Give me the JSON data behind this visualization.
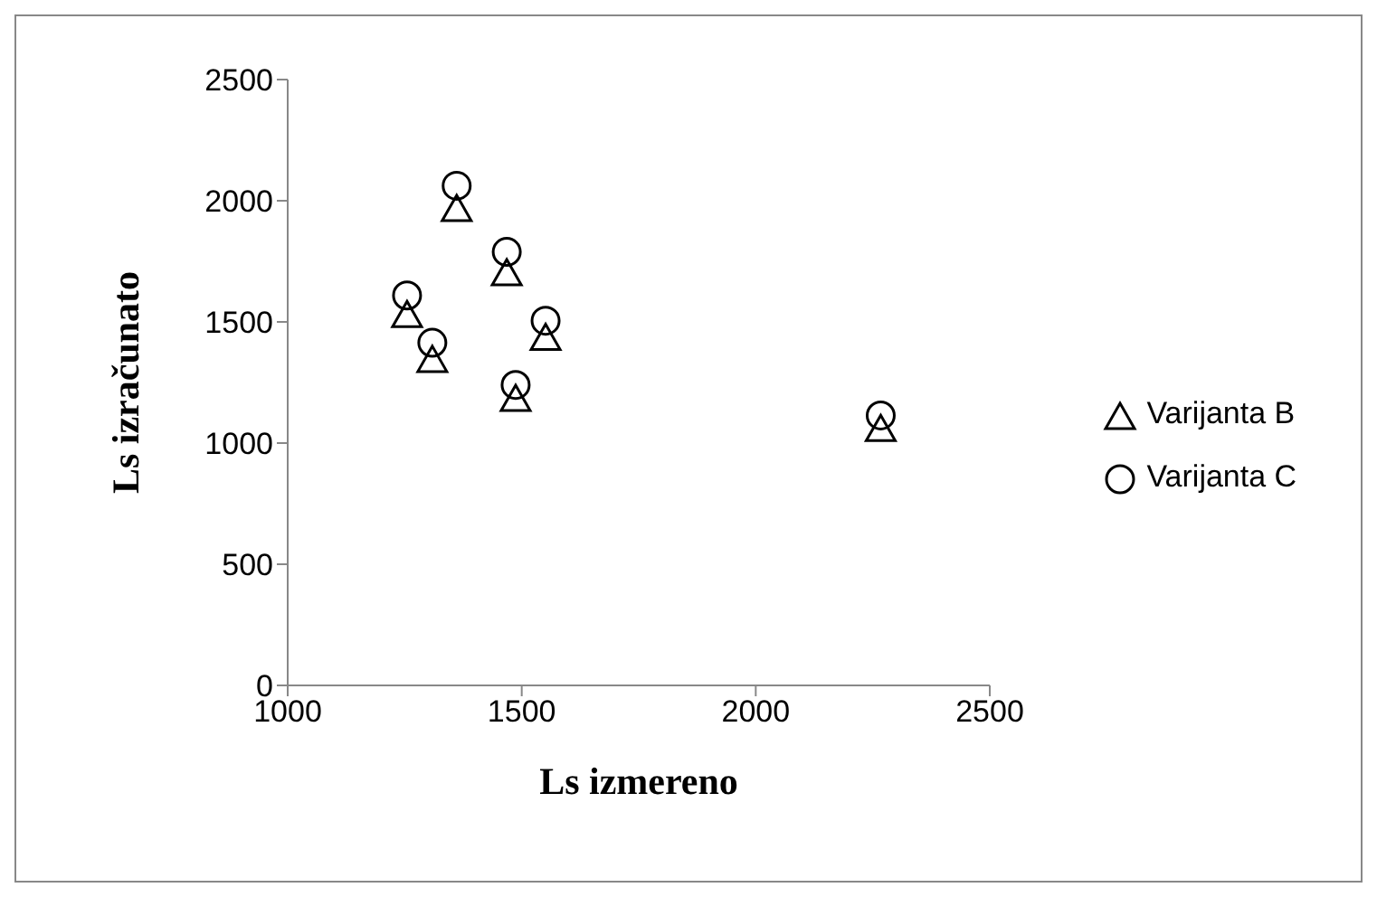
{
  "chart_data": {
    "type": "scatter",
    "xlabel": "Ls izmereno",
    "ylabel": "Ls izračunato",
    "xlim": [
      1000,
      2500
    ],
    "xticks": [
      1000,
      1500,
      2000,
      2500
    ],
    "ylim": [
      0,
      2500
    ],
    "yticks": [
      0,
      500,
      1000,
      1500,
      2000,
      2500
    ],
    "grid": false,
    "legend": "right",
    "series": [
      {
        "name": "Varijanta B",
        "color": "#000000",
        "marker": "triangle",
        "x": [
          1255,
          1309,
          1361,
          1468,
          1487,
          1551,
          2267
        ],
        "values": [
          1525,
          1340,
          1963,
          1698,
          1179,
          1431,
          1055
        ]
      },
      {
        "name": "Varijanta C",
        "color": "#000000",
        "marker": "circle",
        "x": [
          1255,
          1309,
          1361,
          1468,
          1487,
          1551,
          2267
        ],
        "values": [
          1609,
          1414,
          2062,
          1789,
          1240,
          1505,
          1114
        ]
      }
    ]
  }
}
